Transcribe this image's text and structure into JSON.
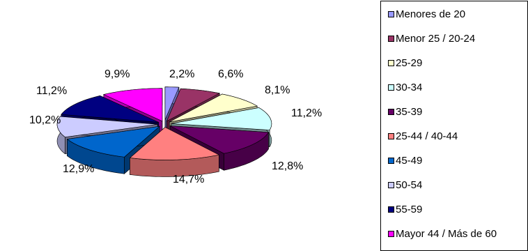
{
  "chart_data": {
    "type": "pie",
    "title": "",
    "legend_position": "right",
    "series": [
      {
        "name": "Menores de 20",
        "value": 2.2,
        "label": "2,2%",
        "color": "#9999ff"
      },
      {
        "name": "Menor 25 / 20-24",
        "value": 6.6,
        "label": "6,6%",
        "color": "#993366"
      },
      {
        "name": "25-29",
        "value": 8.1,
        "label": "8,1%",
        "color": "#ffffcc"
      },
      {
        "name": "30-34",
        "value": 11.2,
        "label": "11,2%",
        "color": "#ccffff"
      },
      {
        "name": "35-39",
        "value": 12.8,
        "label": "12,8%",
        "color": "#660066"
      },
      {
        "name": "25-44 / 40-44",
        "value": 14.7,
        "label": "14,7%",
        "color": "#ff8080"
      },
      {
        "name": "45-49",
        "value": 12.9,
        "label": "12,9%",
        "color": "#0066cc"
      },
      {
        "name": "50-54",
        "value": 10.2,
        "label": "10,2%",
        "color": "#ccccff"
      },
      {
        "name": "55-59",
        "value": 11.2,
        "label": "11,2%",
        "color": "#000080"
      },
      {
        "name": "Mayor 44 / Más de 60",
        "value": 9.9,
        "label": "9,9%",
        "color": "#ff00ff"
      }
    ]
  }
}
